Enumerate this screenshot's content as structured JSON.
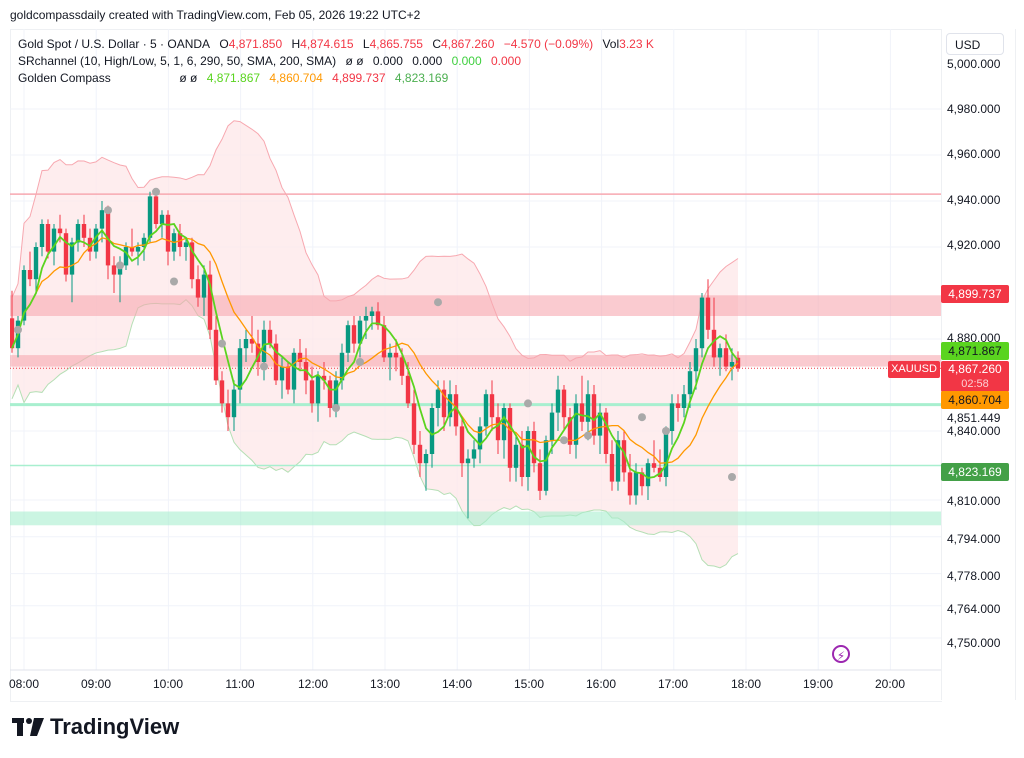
{
  "credit": "goldcompassdaily created with TradingView.com, Feb 05, 2026 19:22 UTC+2",
  "legend": {
    "symbol": "Gold Spot / U.S. Dollar · 5 · OANDA",
    "o_label": "O",
    "o": "4,871.850",
    "h_label": "H",
    "h": "4,874.615",
    "l_label": "L",
    "l": "4,865.755",
    "c_label": "C",
    "c": "4,867.260",
    "change": "−4.570 (−0.09%)",
    "vol_label": "Vol",
    "vol": "3.23 K",
    "sr_name": "SRchannel (10, High/Low, 5, 1, 6, 290, 50, SMA, 200, SMA)",
    "sr_flags": "ø ø",
    "sr_v1": "0.000",
    "sr_v2": "0.000",
    "sr_v3": "0.000",
    "sr_v4": "0.000",
    "gc_name": "Golden Compass",
    "gc_flags": "ø ø",
    "gc_v1": "4,871.867",
    "gc_v2": "4,860.704",
    "gc_v3": "4,899.737",
    "gc_v4": "4,823.169"
  },
  "currency": "USD",
  "price_labels": {
    "upper": "4,899.737",
    "green": "4,871.867",
    "last": "4,867.260",
    "countdown": "02:58",
    "orange": "4,860.704",
    "lower": "4,823.169",
    "symbol_tag": "XAUUSD",
    "level": "4,851.449"
  },
  "brand": "TradingView",
  "colors": {
    "up": "#089981",
    "down": "#f23645",
    "fast_ma": "#5ad41f",
    "slow_ma": "#ff9800",
    "resistance": "#f7a8b0",
    "support": "#a8efcf",
    "band_fill_up": "#e9f5e9",
    "band_fill_down": "#fde7e8"
  },
  "chart_data": {
    "type": "candlestick",
    "title": "Gold Spot / U.S. Dollar · 5 · OANDA",
    "interval": "5 minutes",
    "xlabel": "",
    "ylabel": "USD",
    "x_ticks": [
      "08:00",
      "09:00",
      "10:00",
      "11:00",
      "12:00",
      "13:00",
      "14:00",
      "15:00",
      "16:00",
      "17:00",
      "18:00",
      "19:00",
      "20:00"
    ],
    "y_ticks": [
      "5,000.000",
      "4,980.000",
      "4,960.000",
      "4,940.000",
      "4,920.000",
      "4,880.000",
      "4,840.000",
      "4,810.000",
      "4,794.000",
      "4,778.000",
      "4,764.000",
      "4,750.000"
    ],
    "ylim": [
      4745,
      5002
    ],
    "last_price": 4867.26,
    "ohlc_last": {
      "open": 4871.85,
      "high": 4874.615,
      "low": 4865.755,
      "close": 4867.26,
      "change": -4.57,
      "change_pct": -0.09,
      "volume": "3.23K"
    },
    "indicators": {
      "golden_compass": {
        "fast_ma": 4871.867,
        "slow_ma": 4860.704,
        "upper_band": 4899.737,
        "lower_band": 4823.169
      },
      "sr_channel": {
        "values": [
          0,
          0,
          0,
          0
        ]
      }
    },
    "zones": [
      {
        "type": "resistance_line",
        "price": 4943
      },
      {
        "type": "resistance_zone",
        "from": 4890,
        "to": 4899
      },
      {
        "type": "resistance_zone",
        "from": 4868,
        "to": 4873
      },
      {
        "type": "support_line",
        "price": 4851.449
      },
      {
        "type": "support_line",
        "price": 4825
      },
      {
        "type": "support_zone",
        "from": 4799,
        "to": 4805
      }
    ],
    "candles_approx": [
      [
        4889,
        4901,
        4874,
        4876
      ],
      [
        4876,
        4890,
        4872,
        4888
      ],
      [
        4888,
        4912,
        4886,
        4910
      ],
      [
        4910,
        4918,
        4903,
        4906
      ],
      [
        4906,
        4922,
        4900,
        4920
      ],
      [
        4920,
        4932,
        4916,
        4930
      ],
      [
        4930,
        4932,
        4915,
        4918
      ],
      [
        4918,
        4930,
        4912,
        4928
      ],
      [
        4928,
        4934,
        4922,
        4926
      ],
      [
        4926,
        4928,
        4905,
        4908
      ],
      [
        4908,
        4924,
        4896,
        4922
      ],
      [
        4922,
        4932,
        4918,
        4930
      ],
      [
        4930,
        4934,
        4920,
        4924
      ],
      [
        4924,
        4928,
        4914,
        4918
      ],
      [
        4918,
        4930,
        4915,
        4928
      ],
      [
        4928,
        4940,
        4922,
        4936
      ],
      [
        4936,
        4938,
        4906,
        4912
      ],
      [
        4912,
        4916,
        4900,
        4908
      ],
      [
        4908,
        4916,
        4896,
        4912
      ],
      [
        4912,
        4922,
        4910,
        4920
      ],
      [
        4920,
        4928,
        4916,
        4918
      ],
      [
        4918,
        4922,
        4912,
        4920
      ],
      [
        4920,
        4926,
        4914,
        4924
      ],
      [
        4924,
        4944,
        4922,
        4942
      ],
      [
        4942,
        4944,
        4928,
        4930
      ],
      [
        4930,
        4936,
        4924,
        4934
      ],
      [
        4934,
        4936,
        4912,
        4918
      ],
      [
        4918,
        4928,
        4914,
        4926
      ],
      [
        4926,
        4930,
        4916,
        4920
      ],
      [
        4920,
        4924,
        4914,
        4922
      ],
      [
        4922,
        4924,
        4902,
        4906
      ],
      [
        4906,
        4912,
        4894,
        4898
      ],
      [
        4898,
        4912,
        4890,
        4908
      ],
      [
        4908,
        4914,
        4880,
        4884
      ],
      [
        4884,
        4890,
        4860,
        4862
      ],
      [
        4862,
        4866,
        4848,
        4852
      ],
      [
        4852,
        4858,
        4840,
        4846
      ],
      [
        4846,
        4862,
        4840,
        4858
      ],
      [
        4858,
        4880,
        4852,
        4876
      ],
      [
        4876,
        4884,
        4870,
        4880
      ],
      [
        4880,
        4890,
        4874,
        4878
      ],
      [
        4878,
        4884,
        4864,
        4870
      ],
      [
        4870,
        4888,
        4862,
        4884
      ],
      [
        4884,
        4888,
        4876,
        4878
      ],
      [
        4878,
        4882,
        4860,
        4862
      ],
      [
        4862,
        4872,
        4854,
        4868
      ],
      [
        4868,
        4870,
        4856,
        4858
      ],
      [
        4858,
        4876,
        4852,
        4874
      ],
      [
        4874,
        4880,
        4866,
        4870
      ],
      [
        4870,
        4876,
        4856,
        4862
      ],
      [
        4862,
        4868,
        4848,
        4852
      ],
      [
        4852,
        4866,
        4844,
        4864
      ],
      [
        4864,
        4870,
        4858,
        4862
      ],
      [
        4862,
        4864,
        4846,
        4850
      ],
      [
        4850,
        4866,
        4846,
        4862
      ],
      [
        4862,
        4878,
        4858,
        4874
      ],
      [
        4874,
        4888,
        4870,
        4886
      ],
      [
        4886,
        4890,
        4874,
        4878
      ],
      [
        4878,
        4890,
        4872,
        4888
      ],
      [
        4888,
        4894,
        4880,
        4890
      ],
      [
        4890,
        4894,
        4884,
        4892
      ],
      [
        4892,
        4896,
        4884,
        4886
      ],
      [
        4886,
        4890,
        4870,
        4872
      ],
      [
        4872,
        4878,
        4862,
        4874
      ],
      [
        4874,
        4880,
        4866,
        4872
      ],
      [
        4872,
        4876,
        4860,
        4864
      ],
      [
        4864,
        4870,
        4850,
        4852
      ],
      [
        4852,
        4858,
        4830,
        4834
      ],
      [
        4834,
        4840,
        4820,
        4826
      ],
      [
        4826,
        4832,
        4814,
        4830
      ],
      [
        4830,
        4852,
        4824,
        4850
      ],
      [
        4850,
        4862,
        4842,
        4858
      ],
      [
        4858,
        4862,
        4840,
        4846
      ],
      [
        4846,
        4862,
        4842,
        4856
      ],
      [
        4856,
        4860,
        4838,
        4842
      ],
      [
        4842,
        4846,
        4820,
        4826
      ],
      [
        4826,
        4832,
        4802,
        4828
      ],
      [
        4828,
        4836,
        4824,
        4832
      ],
      [
        4832,
        4846,
        4826,
        4842
      ],
      [
        4842,
        4858,
        4838,
        4856
      ],
      [
        4856,
        4862,
        4840,
        4846
      ],
      [
        4846,
        4852,
        4830,
        4836
      ],
      [
        4836,
        4852,
        4828,
        4850
      ],
      [
        4850,
        4852,
        4818,
        4824
      ],
      [
        4824,
        4838,
        4818,
        4834
      ],
      [
        4834,
        4840,
        4816,
        4820
      ],
      [
        4820,
        4842,
        4814,
        4840
      ],
      [
        4840,
        4844,
        4822,
        4826
      ],
      [
        4826,
        4832,
        4810,
        4814
      ],
      [
        4814,
        4838,
        4812,
        4836
      ],
      [
        4836,
        4852,
        4830,
        4848
      ],
      [
        4848,
        4864,
        4840,
        4858
      ],
      [
        4858,
        4860,
        4840,
        4846
      ],
      [
        4846,
        4850,
        4830,
        4834
      ],
      [
        4834,
        4856,
        4828,
        4852
      ],
      [
        4852,
        4864,
        4840,
        4844
      ],
      [
        4844,
        4862,
        4836,
        4856
      ],
      [
        4856,
        4860,
        4834,
        4838
      ],
      [
        4838,
        4852,
        4830,
        4848
      ],
      [
        4848,
        4850,
        4826,
        4830
      ],
      [
        4830,
        4836,
        4814,
        4818
      ],
      [
        4818,
        4840,
        4814,
        4836
      ],
      [
        4836,
        4840,
        4818,
        4822
      ],
      [
        4822,
        4830,
        4808,
        4812
      ],
      [
        4812,
        4826,
        4808,
        4822
      ],
      [
        4822,
        4824,
        4812,
        4816
      ],
      [
        4816,
        4828,
        4810,
        4826
      ],
      [
        4826,
        4836,
        4822,
        4824
      ],
      [
        4824,
        4832,
        4818,
        4820
      ],
      [
        4820,
        4842,
        4816,
        4840
      ],
      [
        4840,
        4856,
        4834,
        4852
      ],
      [
        4852,
        4856,
        4844,
        4850
      ],
      [
        4850,
        4860,
        4846,
        4856
      ],
      [
        4856,
        4870,
        4850,
        4866
      ],
      [
        4866,
        4880,
        4858,
        4876
      ],
      [
        4876,
        4900,
        4872,
        4898
      ],
      [
        4898,
        4906,
        4880,
        4884
      ],
      [
        4884,
        4898,
        4868,
        4872
      ],
      [
        4872,
        4878,
        4864,
        4876
      ],
      [
        4876,
        4882,
        4866,
        4868
      ],
      [
        4868,
        4876,
        4862,
        4870
      ],
      [
        4871.85,
        4874.615,
        4865.755,
        4867.26
      ]
    ]
  }
}
